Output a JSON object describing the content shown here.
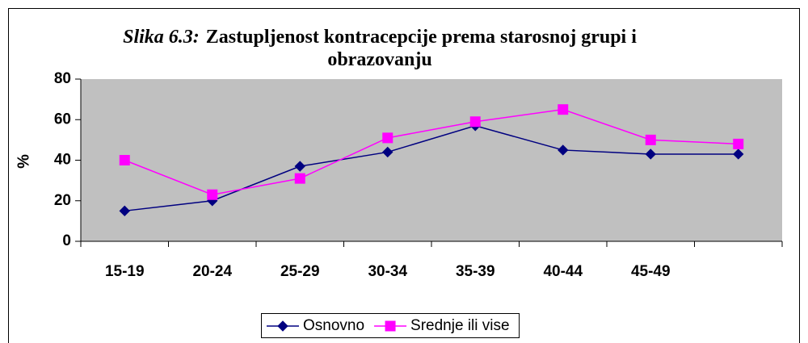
{
  "chart_data": {
    "type": "line",
    "title_label": "Slika 6.3:",
    "title": "Zastupljenost kontracepcije prema starosnoj grupi i obrazovanju",
    "y_label": "%",
    "categories": [
      "15-19",
      "20-24",
      "25-29",
      "30-34",
      "35-39",
      "40-44",
      "45-49",
      null
    ],
    "series": [
      {
        "name": "Osnovno",
        "color": "#000080",
        "marker": "diamond",
        "values": [
          15,
          20,
          37,
          44,
          57,
          45,
          43,
          43
        ]
      },
      {
        "name": "Srednje ili vise",
        "color": "#ff00ff",
        "marker": "square",
        "values": [
          40,
          23,
          31,
          51,
          59,
          65,
          50,
          48
        ]
      }
    ],
    "ylim": [
      0,
      80
    ],
    "yticks": [
      0,
      20,
      40,
      60,
      80
    ],
    "grid": false,
    "legend": "bottom",
    "plot_background": "#c0c0c0"
  }
}
